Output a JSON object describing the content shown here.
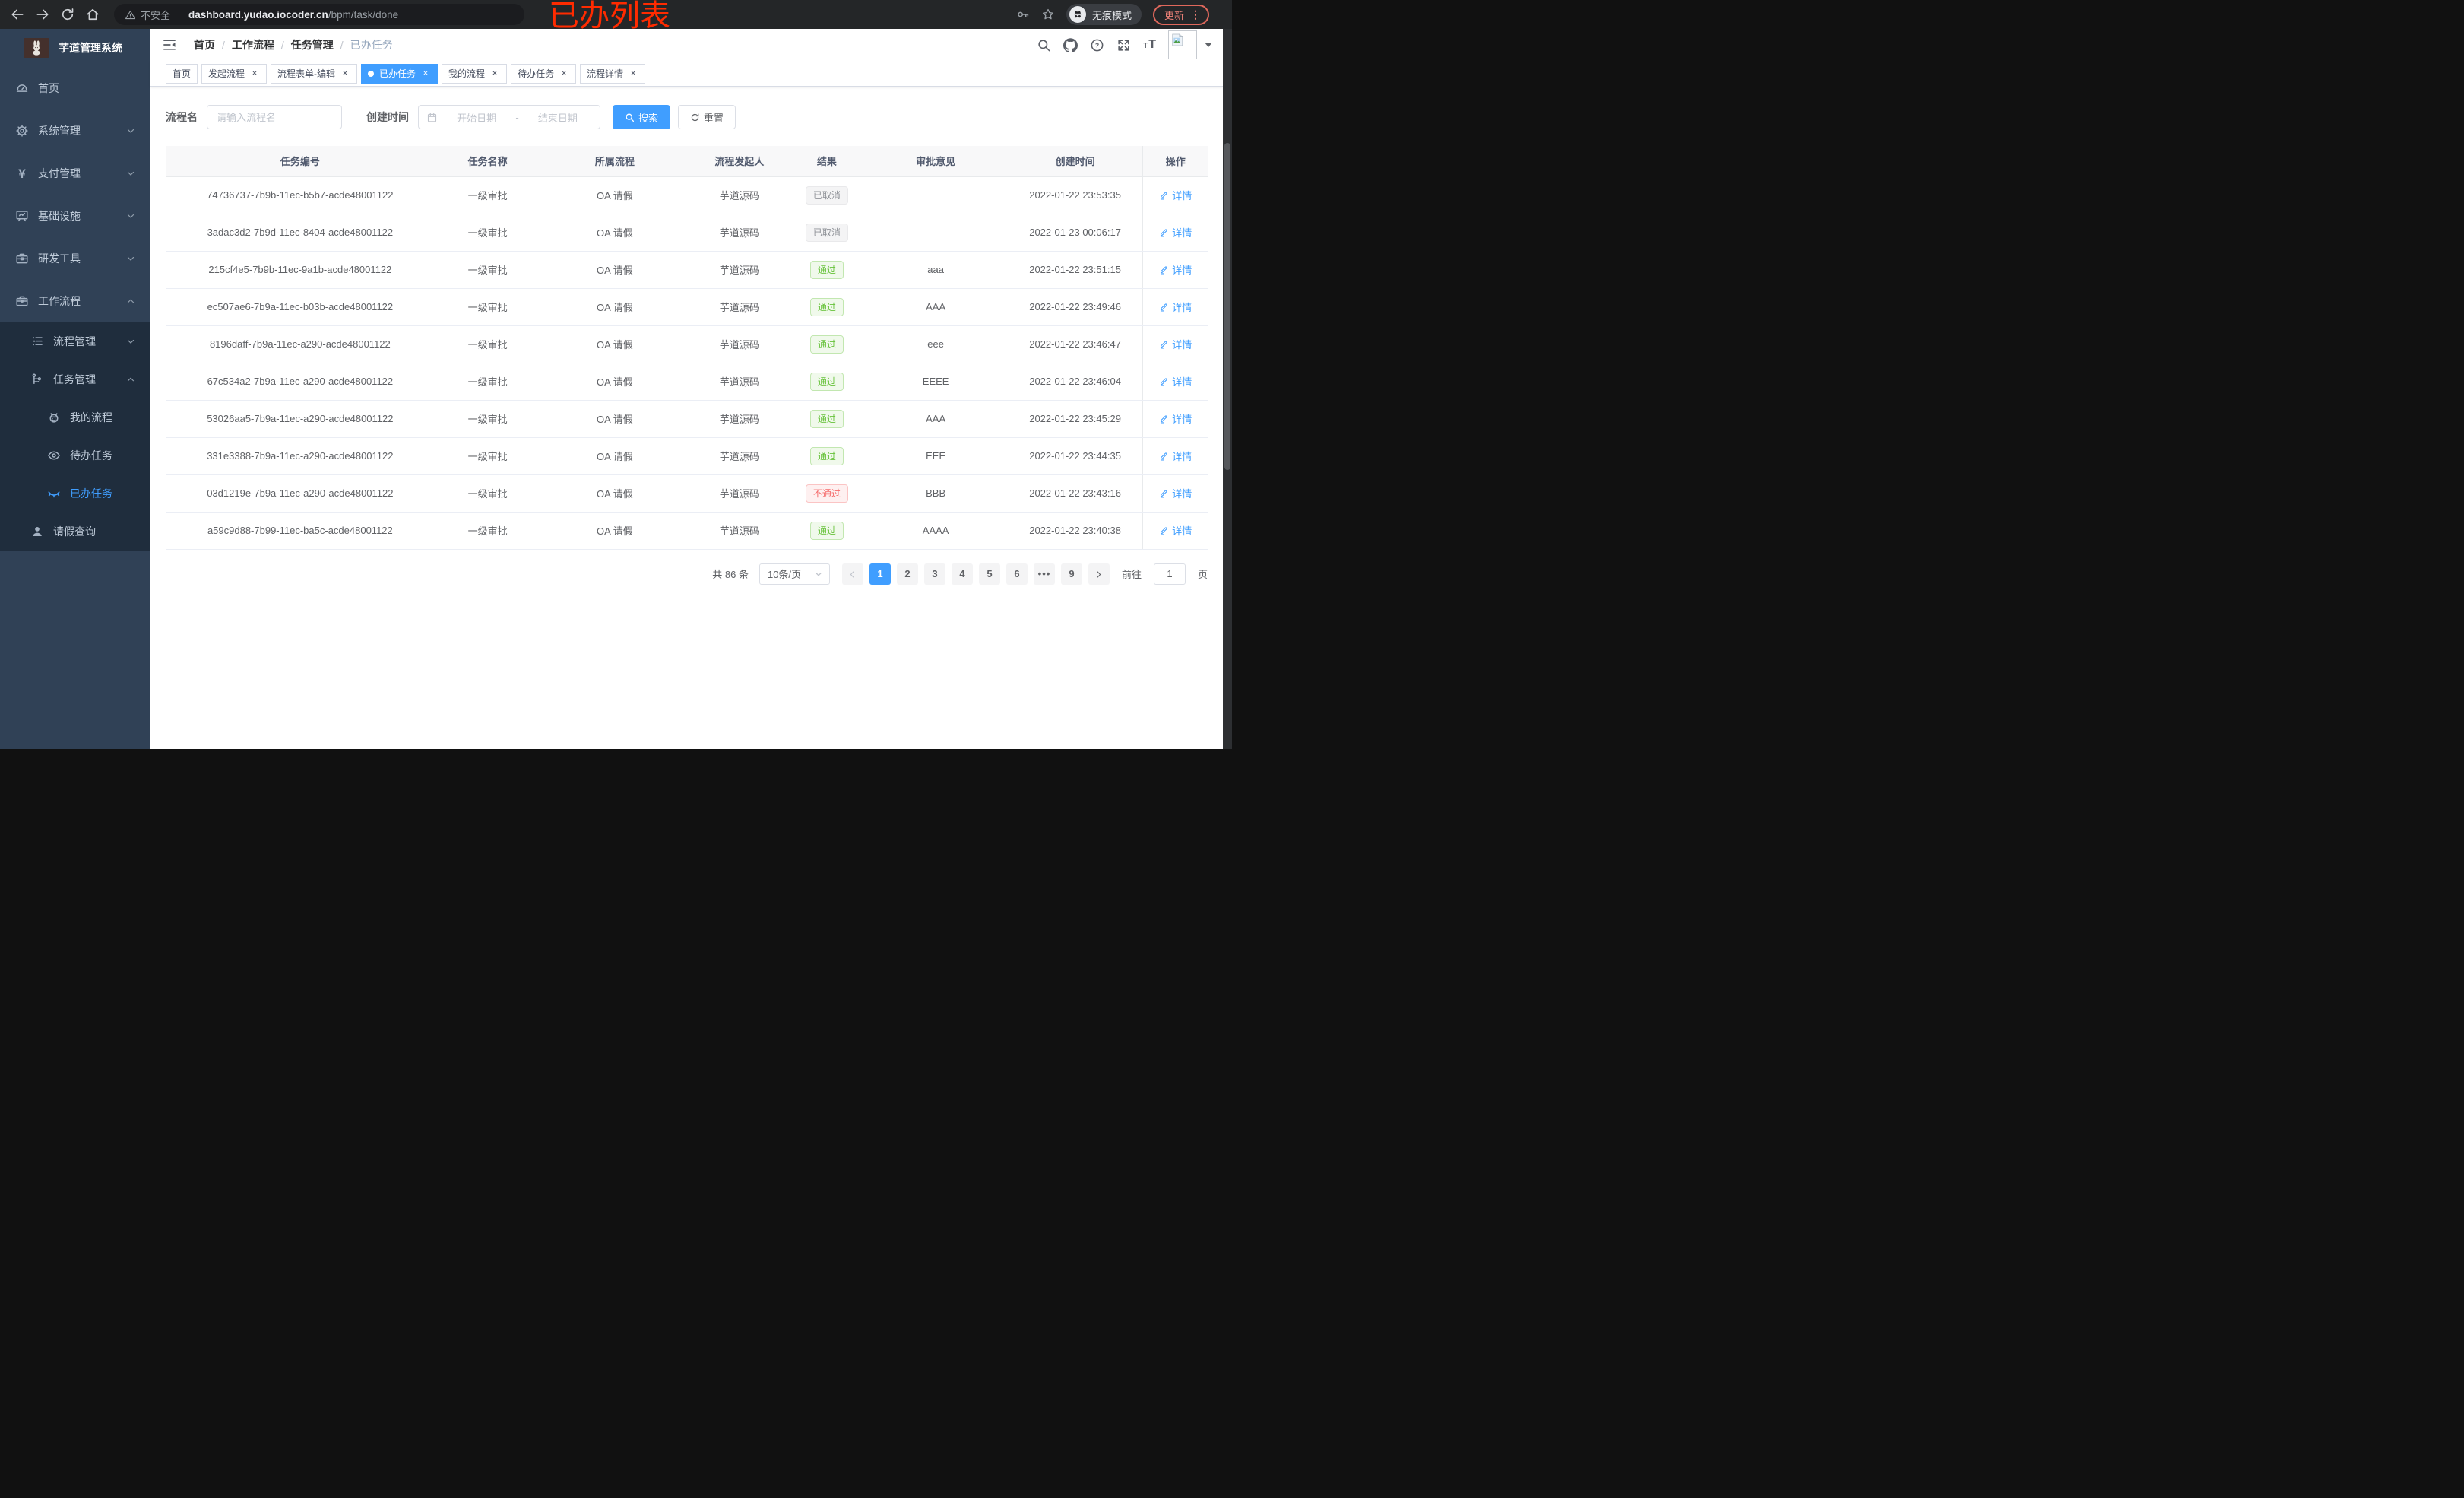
{
  "browser": {
    "security_label": "不安全",
    "url_host": "dashboard.yudao.iocoder.cn",
    "url_path": "/bpm/task/done",
    "incognito_label": "无痕模式",
    "update_label": "更新",
    "annotation": "已办列表"
  },
  "sidebar": {
    "title": "芋道管理系统",
    "menu": [
      {
        "key": "home",
        "label": "首页",
        "icon": "dashboard-icon",
        "level": 1
      },
      {
        "key": "system-management",
        "label": "系统管理",
        "icon": "gear-icon",
        "level": 1,
        "arrow": "down"
      },
      {
        "key": "payment-management",
        "label": "支付管理",
        "icon": "yen-icon",
        "level": 1,
        "arrow": "down"
      },
      {
        "key": "infrastructure",
        "label": "基础设施",
        "icon": "monitor-icon",
        "level": 1,
        "arrow": "down"
      },
      {
        "key": "dev-tools",
        "label": "研发工具",
        "icon": "toolbox-icon",
        "level": 1,
        "arrow": "down"
      },
      {
        "key": "workflow",
        "label": "工作流程",
        "icon": "briefcase-icon",
        "level": 1,
        "arrow": "up"
      },
      {
        "key": "process-management",
        "label": "流程管理",
        "icon": "list-icon",
        "level": 2,
        "arrow": "down",
        "group": true
      },
      {
        "key": "task-management",
        "label": "任务管理",
        "icon": "tree-icon",
        "level": 2,
        "arrow": "up",
        "group": true
      },
      {
        "key": "my-process",
        "label": "我的流程",
        "icon": "robot-icon",
        "level": 3,
        "group": true
      },
      {
        "key": "todo-task",
        "label": "待办任务",
        "icon": "eye-icon",
        "level": 3,
        "group": true
      },
      {
        "key": "done-task",
        "label": "已办任务",
        "icon": "eye-closed-icon",
        "level": 3,
        "group": true,
        "active": true
      },
      {
        "key": "leave-query",
        "label": "请假查询",
        "icon": "user-icon",
        "level": 2,
        "group": true
      }
    ]
  },
  "breadcrumb": [
    "首页",
    "工作流程",
    "任务管理",
    "已办任务"
  ],
  "tabs": [
    {
      "key": "home",
      "label": "首页",
      "closable": false
    },
    {
      "key": "start-process",
      "label": "发起流程",
      "closable": true
    },
    {
      "key": "form-edit",
      "label": "流程表单-编辑",
      "closable": true
    },
    {
      "key": "done-task",
      "label": "已办任务",
      "closable": true,
      "active": true
    },
    {
      "key": "my-process",
      "label": "我的流程",
      "closable": true
    },
    {
      "key": "todo-task",
      "label": "待办任务",
      "closable": true
    },
    {
      "key": "process-detail",
      "label": "流程详情",
      "closable": true
    }
  ],
  "filters": {
    "name_label": "流程名",
    "name_placeholder": "请输入流程名",
    "time_label": "创建时间",
    "start_placeholder": "开始日期",
    "separator": "-",
    "end_placeholder": "结束日期",
    "search_label": "搜索",
    "reset_label": "重置"
  },
  "table": {
    "columns": [
      "任务编号",
      "任务名称",
      "所属流程",
      "流程发起人",
      "结果",
      "审批意见",
      "创建时间",
      "操作"
    ],
    "action_label": "详情",
    "rows": [
      {
        "id": "74736737-7b9b-11ec-b5b7-acde48001122",
        "name": "一级审批",
        "process": "OA 请假",
        "starter": "芋道源码",
        "result": "已取消",
        "result_type": "info",
        "comment": "",
        "created": "2022-01-22 23:53:35"
      },
      {
        "id": "3adac3d2-7b9d-11ec-8404-acde48001122",
        "name": "一级审批",
        "process": "OA 请假",
        "starter": "芋道源码",
        "result": "已取消",
        "result_type": "info",
        "comment": "",
        "created": "2022-01-23 00:06:17"
      },
      {
        "id": "215cf4e5-7b9b-11ec-9a1b-acde48001122",
        "name": "一级审批",
        "process": "OA 请假",
        "starter": "芋道源码",
        "result": "通过",
        "result_type": "success",
        "comment": "aaa",
        "created": "2022-01-22 23:51:15"
      },
      {
        "id": "ec507ae6-7b9a-11ec-b03b-acde48001122",
        "name": "一级审批",
        "process": "OA 请假",
        "starter": "芋道源码",
        "result": "通过",
        "result_type": "success",
        "comment": "AAA",
        "created": "2022-01-22 23:49:46"
      },
      {
        "id": "8196daff-7b9a-11ec-a290-acde48001122",
        "name": "一级审批",
        "process": "OA 请假",
        "starter": "芋道源码",
        "result": "通过",
        "result_type": "success",
        "comment": "eee",
        "created": "2022-01-22 23:46:47"
      },
      {
        "id": "67c534a2-7b9a-11ec-a290-acde48001122",
        "name": "一级审批",
        "process": "OA 请假",
        "starter": "芋道源码",
        "result": "通过",
        "result_type": "success",
        "comment": "EEEE",
        "created": "2022-01-22 23:46:04"
      },
      {
        "id": "53026aa5-7b9a-11ec-a290-acde48001122",
        "name": "一级审批",
        "process": "OA 请假",
        "starter": "芋道源码",
        "result": "通过",
        "result_type": "success",
        "comment": "AAA",
        "created": "2022-01-22 23:45:29"
      },
      {
        "id": "331e3388-7b9a-11ec-a290-acde48001122",
        "name": "一级审批",
        "process": "OA 请假",
        "starter": "芋道源码",
        "result": "通过",
        "result_type": "success",
        "comment": "EEE",
        "created": "2022-01-22 23:44:35"
      },
      {
        "id": "03d1219e-7b9a-11ec-a290-acde48001122",
        "name": "一级审批",
        "process": "OA 请假",
        "starter": "芋道源码",
        "result": "不通过",
        "result_type": "danger",
        "comment": "BBB",
        "created": "2022-01-22 23:43:16"
      },
      {
        "id": "a59c9d88-7b99-11ec-ba5c-acde48001122",
        "name": "一级审批",
        "process": "OA 请假",
        "starter": "芋道源码",
        "result": "通过",
        "result_type": "success",
        "comment": "AAAA",
        "created": "2022-01-22 23:40:38"
      }
    ]
  },
  "pagination": {
    "total_label": "共 86 条",
    "page_size": "10条/页",
    "pages": [
      "1",
      "2",
      "3",
      "4",
      "5",
      "6",
      "•••",
      "9"
    ],
    "active_page": "1",
    "goto_label": "前往",
    "goto_value": "1",
    "goto_unit": "页"
  },
  "colors": {
    "primary": "#409eff",
    "success": "#67c23a",
    "danger": "#f56c6c",
    "info": "#909399",
    "sidebar_bg": "#304156",
    "sidebar_sub_bg": "#1f2d3d",
    "annotation": "#ff2b00"
  }
}
